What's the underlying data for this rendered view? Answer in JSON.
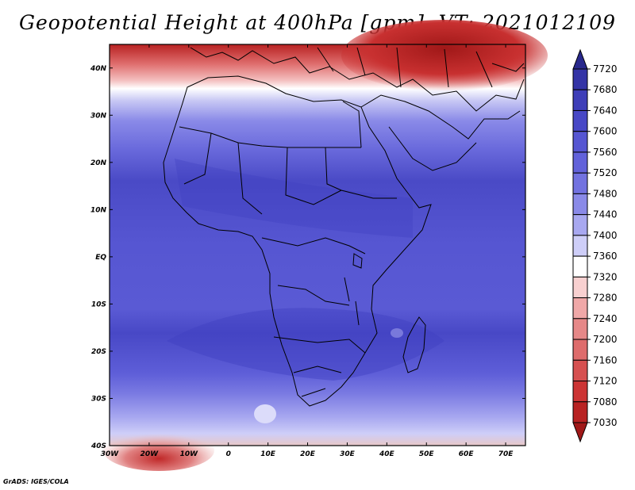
{
  "title": "Geopotential Height at 400hPa [gpm], VT: 2021012109",
  "credit": "GrADS: IGES/COLA",
  "map": {
    "lon_labels": [
      "30W",
      "20W",
      "10W",
      "0",
      "10E",
      "20E",
      "30E",
      "40E",
      "50E",
      "60E",
      "70E"
    ],
    "lat_labels": [
      "40N",
      "30N",
      "20N",
      "10N",
      "EQ",
      "10S",
      "20S",
      "30S",
      "40S"
    ],
    "lon_range": [
      -30,
      75
    ],
    "lat_range": [
      -40,
      45
    ]
  },
  "colorbar": {
    "levels": [
      "7720",
      "7680",
      "7640",
      "7600",
      "7560",
      "7520",
      "7480",
      "7440",
      "7400",
      "7360",
      "7320",
      "7280",
      "7240",
      "7200",
      "7160",
      "7120",
      "7080",
      "7030"
    ],
    "colors": [
      "#28288c",
      "#3434a6",
      "#3e3eb8",
      "#4848c6",
      "#5656d2",
      "#6262da",
      "#7272e0",
      "#8a8ae8",
      "#a8a8f0",
      "#ceceF8",
      "#ffffff",
      "#f8d0d0",
      "#f0a8a8",
      "#e68888",
      "#de6c6c",
      "#d65050",
      "#cc3434",
      "#b82222",
      "#a01818"
    ]
  }
}
